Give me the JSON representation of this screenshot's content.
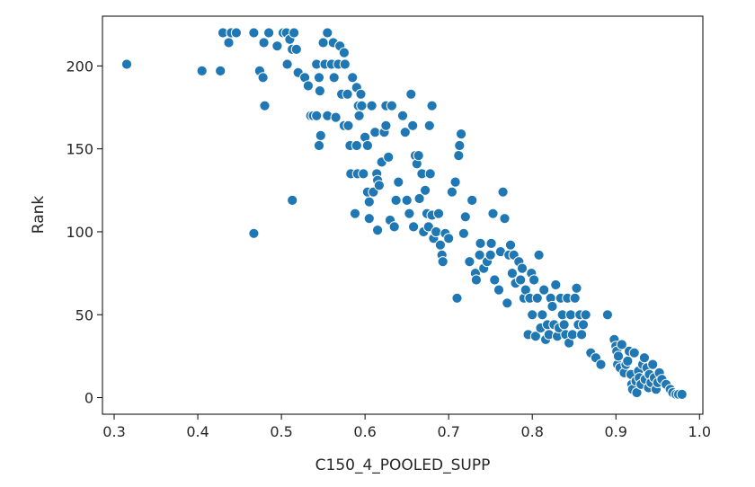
{
  "chart_data": {
    "type": "scatter",
    "title": "",
    "xlabel": "C150_4_POOLED_SUPP",
    "ylabel": "Rank",
    "xlim": [
      0.286,
      1.004
    ],
    "ylim": [
      -10,
      230
    ],
    "x_ticks": [
      0.3,
      0.4,
      0.5,
      0.6,
      0.7,
      0.8,
      0.9,
      1.0
    ],
    "x_tick_labels": [
      "0.3",
      "0.4",
      "0.5",
      "0.6",
      "0.7",
      "0.8",
      "0.9",
      "1.0"
    ],
    "y_ticks": [
      0,
      50,
      100,
      150,
      200
    ],
    "y_tick_labels": [
      "0",
      "50",
      "100",
      "150",
      "200"
    ],
    "grid": false,
    "legend": "none",
    "marker_color": "#1f77b4",
    "points": [
      [
        0.315,
        201
      ],
      [
        0.405,
        197
      ],
      [
        0.427,
        197
      ],
      [
        0.43,
        220
      ],
      [
        0.437,
        214
      ],
      [
        0.44,
        220
      ],
      [
        0.446,
        220
      ],
      [
        0.467,
        220
      ],
      [
        0.474,
        197
      ],
      [
        0.478,
        193
      ],
      [
        0.479,
        214
      ],
      [
        0.48,
        176
      ],
      [
        0.485,
        220
      ],
      [
        0.467,
        99
      ],
      [
        0.513,
        119
      ],
      [
        0.495,
        212
      ],
      [
        0.502,
        220
      ],
      [
        0.506,
        220
      ],
      [
        0.507,
        201
      ],
      [
        0.51,
        216
      ],
      [
        0.513,
        210
      ],
      [
        0.515,
        220
      ],
      [
        0.518,
        210
      ],
      [
        0.52,
        196
      ],
      [
        0.528,
        193
      ],
      [
        0.532,
        188
      ],
      [
        0.535,
        170
      ],
      [
        0.538,
        170
      ],
      [
        0.542,
        201
      ],
      [
        0.542,
        170
      ],
      [
        0.545,
        193
      ],
      [
        0.545,
        152
      ],
      [
        0.546,
        185
      ],
      [
        0.547,
        158
      ],
      [
        0.55,
        214
      ],
      [
        0.552,
        201
      ],
      [
        0.555,
        220
      ],
      [
        0.555,
        170
      ],
      [
        0.56,
        201
      ],
      [
        0.562,
        214
      ],
      [
        0.563,
        193
      ],
      [
        0.565,
        169
      ],
      [
        0.568,
        201
      ],
      [
        0.57,
        212
      ],
      [
        0.572,
        183
      ],
      [
        0.575,
        164
      ],
      [
        0.575,
        208
      ],
      [
        0.576,
        201
      ],
      [
        0.579,
        183
      ],
      [
        0.58,
        164
      ],
      [
        0.582,
        152
      ],
      [
        0.583,
        135
      ],
      [
        0.585,
        193
      ],
      [
        0.588,
        111
      ],
      [
        0.59,
        187
      ],
      [
        0.59,
        152
      ],
      [
        0.591,
        135
      ],
      [
        0.592,
        176
      ],
      [
        0.593,
        170
      ],
      [
        0.595,
        183
      ],
      [
        0.596,
        176
      ],
      [
        0.598,
        135
      ],
      [
        0.6,
        157
      ],
      [
        0.603,
        152
      ],
      [
        0.603,
        124
      ],
      [
        0.605,
        118
      ],
      [
        0.605,
        108
      ],
      [
        0.608,
        176
      ],
      [
        0.61,
        124
      ],
      [
        0.612,
        160
      ],
      [
        0.614,
        135
      ],
      [
        0.615,
        131
      ],
      [
        0.615,
        101
      ],
      [
        0.617,
        128
      ],
      [
        0.62,
        142
      ],
      [
        0.623,
        160
      ],
      [
        0.625,
        164
      ],
      [
        0.625,
        176
      ],
      [
        0.628,
        145
      ],
      [
        0.63,
        107
      ],
      [
        0.632,
        176
      ],
      [
        0.635,
        103
      ],
      [
        0.637,
        119
      ],
      [
        0.64,
        130
      ],
      [
        0.645,
        170
      ],
      [
        0.648,
        160
      ],
      [
        0.65,
        119
      ],
      [
        0.653,
        111
      ],
      [
        0.655,
        183
      ],
      [
        0.657,
        164
      ],
      [
        0.658,
        103
      ],
      [
        0.66,
        146
      ],
      [
        0.662,
        141
      ],
      [
        0.664,
        146
      ],
      [
        0.665,
        120
      ],
      [
        0.668,
        135
      ],
      [
        0.67,
        100
      ],
      [
        0.672,
        125
      ],
      [
        0.674,
        111
      ],
      [
        0.676,
        103
      ],
      [
        0.677,
        164
      ],
      [
        0.678,
        135
      ],
      [
        0.68,
        176
      ],
      [
        0.68,
        110
      ],
      [
        0.682,
        96
      ],
      [
        0.685,
        100
      ],
      [
        0.688,
        111
      ],
      [
        0.69,
        92
      ],
      [
        0.692,
        86
      ],
      [
        0.693,
        82
      ],
      [
        0.696,
        99
      ],
      [
        0.7,
        96
      ],
      [
        0.704,
        124
      ],
      [
        0.708,
        130
      ],
      [
        0.71,
        60
      ],
      [
        0.712,
        146
      ],
      [
        0.713,
        152
      ],
      [
        0.715,
        159
      ],
      [
        0.718,
        99
      ],
      [
        0.72,
        109
      ],
      [
        0.725,
        82
      ],
      [
        0.728,
        119
      ],
      [
        0.732,
        75
      ],
      [
        0.733,
        71
      ],
      [
        0.737,
        86
      ],
      [
        0.738,
        93
      ],
      [
        0.742,
        78
      ],
      [
        0.746,
        82
      ],
      [
        0.75,
        86
      ],
      [
        0.751,
        93
      ],
      [
        0.753,
        111
      ],
      [
        0.755,
        71
      ],
      [
        0.76,
        65
      ],
      [
        0.762,
        88
      ],
      [
        0.765,
        124
      ],
      [
        0.767,
        108
      ],
      [
        0.77,
        57
      ],
      [
        0.772,
        86
      ],
      [
        0.774,
        92
      ],
      [
        0.776,
        75
      ],
      [
        0.778,
        86
      ],
      [
        0.78,
        69
      ],
      [
        0.784,
        82
      ],
      [
        0.786,
        71
      ],
      [
        0.788,
        78
      ],
      [
        0.79,
        60
      ],
      [
        0.792,
        65
      ],
      [
        0.795,
        38
      ],
      [
        0.797,
        60
      ],
      [
        0.799,
        75
      ],
      [
        0.8,
        50
      ],
      [
        0.802,
        71
      ],
      [
        0.804,
        37
      ],
      [
        0.806,
        60
      ],
      [
        0.808,
        86
      ],
      [
        0.81,
        42
      ],
      [
        0.812,
        50
      ],
      [
        0.814,
        65
      ],
      [
        0.816,
        35
      ],
      [
        0.818,
        44
      ],
      [
        0.82,
        38
      ],
      [
        0.822,
        60
      ],
      [
        0.824,
        55
      ],
      [
        0.826,
        44
      ],
      [
        0.828,
        68
      ],
      [
        0.83,
        37
      ],
      [
        0.832,
        42
      ],
      [
        0.834,
        60
      ],
      [
        0.836,
        50
      ],
      [
        0.838,
        44
      ],
      [
        0.84,
        38
      ],
      [
        0.842,
        60
      ],
      [
        0.844,
        33
      ],
      [
        0.846,
        50
      ],
      [
        0.848,
        38
      ],
      [
        0.851,
        60
      ],
      [
        0.853,
        66
      ],
      [
        0.855,
        44
      ],
      [
        0.857,
        50
      ],
      [
        0.859,
        38
      ],
      [
        0.861,
        44
      ],
      [
        0.864,
        50
      ],
      [
        0.87,
        27
      ],
      [
        0.876,
        24
      ],
      [
        0.882,
        20
      ],
      [
        0.89,
        50
      ],
      [
        0.898,
        35
      ],
      [
        0.9,
        31
      ],
      [
        0.901,
        28
      ],
      [
        0.902,
        20
      ],
      [
        0.903,
        25
      ],
      [
        0.905,
        18
      ],
      [
        0.907,
        32
      ],
      [
        0.91,
        15
      ],
      [
        0.912,
        20
      ],
      [
        0.914,
        22
      ],
      [
        0.916,
        28
      ],
      [
        0.918,
        14
      ],
      [
        0.919,
        8
      ],
      [
        0.92,
        5
      ],
      [
        0.922,
        27
      ],
      [
        0.924,
        10
      ],
      [
        0.925,
        3
      ],
      [
        0.927,
        16
      ],
      [
        0.928,
        12
      ],
      [
        0.93,
        8
      ],
      [
        0.932,
        20
      ],
      [
        0.934,
        24
      ],
      [
        0.935,
        11
      ],
      [
        0.937,
        18
      ],
      [
        0.939,
        6
      ],
      [
        0.94,
        14
      ],
      [
        0.942,
        9
      ],
      [
        0.944,
        20
      ],
      [
        0.946,
        12
      ],
      [
        0.948,
        5
      ],
      [
        0.95,
        9
      ],
      [
        0.952,
        15
      ],
      [
        0.955,
        11
      ],
      [
        0.96,
        8
      ],
      [
        0.965,
        5
      ],
      [
        0.968,
        3
      ],
      [
        0.972,
        2
      ],
      [
        0.975,
        2
      ],
      [
        0.979,
        2
      ]
    ]
  }
}
